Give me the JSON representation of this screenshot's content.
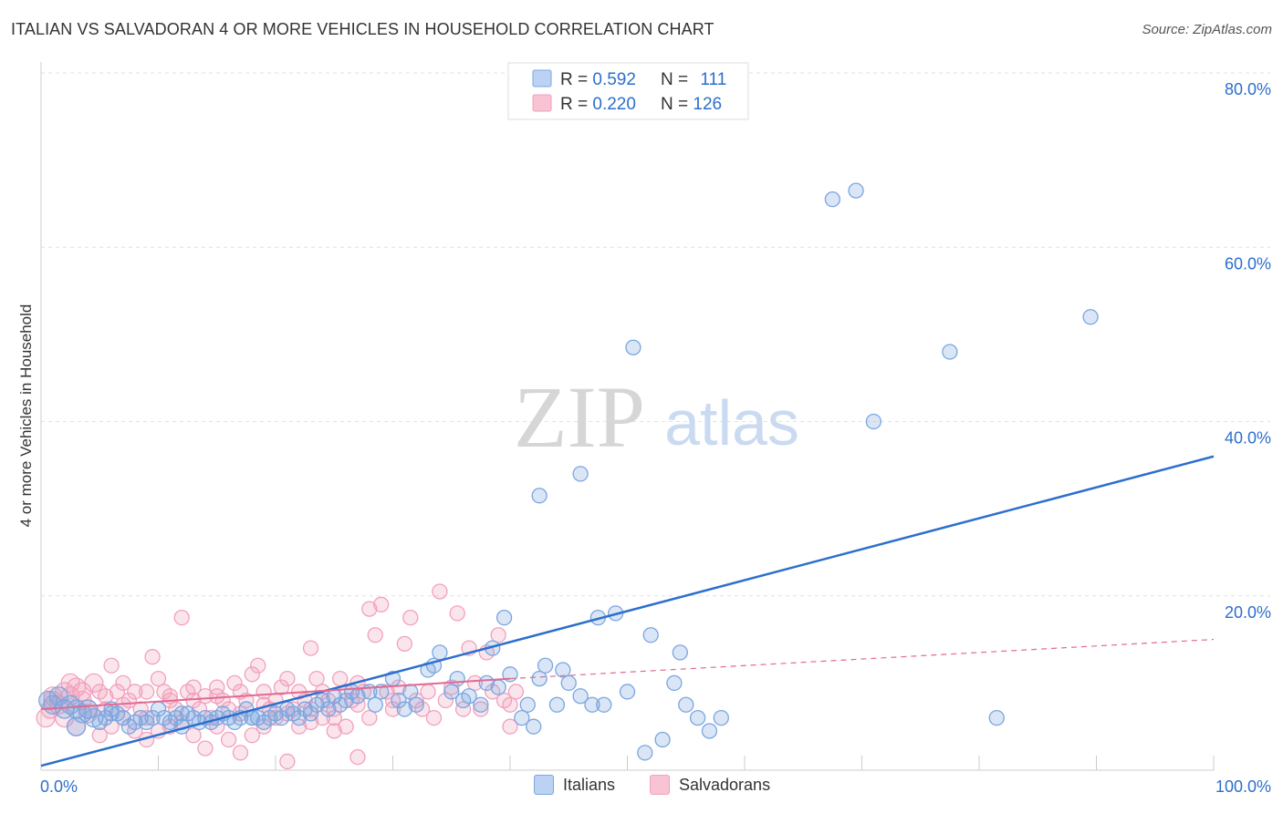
{
  "title": "ITALIAN VS SALVADORAN 4 OR MORE VEHICLES IN HOUSEHOLD CORRELATION CHART",
  "source": "Source: ZipAtlas.com",
  "watermark": {
    "zip": "ZIP",
    "atlas": "atlas"
  },
  "stats": [
    {
      "r_label": "R = ",
      "r_value": "0.592",
      "n_label": "N = ",
      "n_value": "111"
    },
    {
      "r_label": "R = ",
      "r_value": "0.220",
      "n_label": "N = ",
      "n_value": "126"
    }
  ],
  "chart_data": {
    "type": "scatter",
    "title": "ITALIAN VS SALVADORAN 4 OR MORE VEHICLES IN HOUSEHOLD CORRELATION CHART",
    "xlabel": "",
    "ylabel": "4 or more Vehicles in Household",
    "xlim": [
      0,
      100
    ],
    "ylim": [
      0,
      80
    ],
    "x_tick_labels": [
      "0.0%",
      "100.0%"
    ],
    "y_ticks": [
      20,
      40,
      60,
      80
    ],
    "y_tick_labels": [
      "20.0%",
      "40.0%",
      "60.0%",
      "80.0%"
    ],
    "grid": true,
    "legend_position": "bottom-center",
    "series": [
      {
        "name": "Italians",
        "color": "#7aa6e0",
        "line_color": "#2c6fcc",
        "trend": {
          "x": [
            0,
            100
          ],
          "y": [
            0.5,
            36
          ]
        },
        "points": [
          [
            0.6,
            8
          ],
          [
            1,
            7.5
          ],
          [
            1.5,
            8.5
          ],
          [
            2,
            7
          ],
          [
            2.5,
            7.5
          ],
          [
            3,
            7
          ],
          [
            3.5,
            6.5
          ],
          [
            4,
            7
          ],
          [
            4.5,
            6
          ],
          [
            5,
            5.5
          ],
          [
            5.5,
            6
          ],
          [
            6,
            7
          ],
          [
            6.5,
            6.5
          ],
          [
            7,
            6
          ],
          [
            7.5,
            5
          ],
          [
            8,
            5.5
          ],
          [
            8.5,
            6
          ],
          [
            9,
            5.5
          ],
          [
            9.5,
            6
          ],
          [
            10,
            7
          ],
          [
            10.5,
            6
          ],
          [
            11,
            5.5
          ],
          [
            11.5,
            6
          ],
          [
            12,
            5
          ],
          [
            12.5,
            6.5
          ],
          [
            13,
            6
          ],
          [
            13.5,
            5.5
          ],
          [
            14,
            6
          ],
          [
            14.5,
            5.5
          ],
          [
            15,
            6
          ],
          [
            15.5,
            6.5
          ],
          [
            16,
            6
          ],
          [
            16.5,
            5.5
          ],
          [
            17,
            6
          ],
          [
            17.5,
            7
          ],
          [
            18,
            6
          ],
          [
            18.5,
            6
          ],
          [
            19,
            5.5
          ],
          [
            19.5,
            6
          ],
          [
            20,
            6.5
          ],
          [
            20.5,
            6
          ],
          [
            21,
            7
          ],
          [
            21.5,
            6.5
          ],
          [
            22,
            6
          ],
          [
            22.5,
            7
          ],
          [
            23,
            6.5
          ],
          [
            23.5,
            7.5
          ],
          [
            24,
            8
          ],
          [
            24.5,
            7
          ],
          [
            25,
            8.5
          ],
          [
            25.5,
            7.5
          ],
          [
            26,
            8
          ],
          [
            26.5,
            9
          ],
          [
            27,
            8.5
          ],
          [
            28,
            9
          ],
          [
            28.5,
            7.5
          ],
          [
            29,
            9
          ],
          [
            30,
            10.5
          ],
          [
            30.5,
            8
          ],
          [
            31,
            7
          ],
          [
            31.5,
            9
          ],
          [
            32,
            7.5
          ],
          [
            33,
            11.5
          ],
          [
            33.5,
            12
          ],
          [
            34,
            13.5
          ],
          [
            35,
            9
          ],
          [
            35.5,
            10.5
          ],
          [
            36,
            8
          ],
          [
            36.5,
            8.5
          ],
          [
            37.5,
            7.5
          ],
          [
            38,
            10
          ],
          [
            38.5,
            14
          ],
          [
            39,
            9.5
          ],
          [
            39.5,
            17.5
          ],
          [
            40,
            11
          ],
          [
            41,
            6
          ],
          [
            41.5,
            7.5
          ],
          [
            42,
            5
          ],
          [
            42.5,
            10.5
          ],
          [
            43,
            12
          ],
          [
            44,
            7.5
          ],
          [
            44.5,
            11.5
          ],
          [
            45,
            10
          ],
          [
            46,
            8.5
          ],
          [
            47,
            7.5
          ],
          [
            47.5,
            17.5
          ],
          [
            48,
            7.5
          ],
          [
            49,
            18
          ],
          [
            50,
            9
          ],
          [
            51.5,
            2
          ],
          [
            52,
            15.5
          ],
          [
            53,
            3.5
          ],
          [
            54,
            10
          ],
          [
            54.5,
            13.5
          ],
          [
            55,
            7.5
          ],
          [
            56,
            6
          ],
          [
            57,
            4.5
          ],
          [
            58,
            6
          ],
          [
            42.5,
            31.5
          ],
          [
            46,
            34
          ],
          [
            50.5,
            48.5
          ],
          [
            67.5,
            65.5
          ],
          [
            69.5,
            66.5
          ],
          [
            71,
            40
          ],
          [
            77.5,
            48
          ],
          [
            89.5,
            52
          ],
          [
            81.5,
            6
          ],
          [
            3,
            5
          ],
          [
            6,
            6.5
          ],
          [
            12,
            6.5
          ],
          [
            18,
            6
          ]
        ]
      },
      {
        "name": "Salvadorans",
        "color": "#f2a0bc",
        "line_color": "#e06a92",
        "trend": {
          "x": [
            0,
            40
          ],
          "y": [
            7,
            10.5
          ]
        },
        "trend_dash": {
          "x": [
            40,
            100
          ],
          "y": [
            10.5,
            15
          ]
        },
        "points": [
          [
            0.4,
            6
          ],
          [
            0.8,
            7
          ],
          [
            1,
            8
          ],
          [
            1.5,
            7.5
          ],
          [
            2,
            9
          ],
          [
            2.5,
            8.5
          ],
          [
            3,
            9.5
          ],
          [
            3.5,
            8
          ],
          [
            4,
            7
          ],
          [
            4.5,
            10
          ],
          [
            5,
            9
          ],
          [
            5.5,
            8.5
          ],
          [
            6,
            12
          ],
          [
            6.5,
            9
          ],
          [
            7,
            10
          ],
          [
            7.5,
            8
          ],
          [
            8,
            9
          ],
          [
            8.5,
            7
          ],
          [
            9,
            6
          ],
          [
            9.5,
            13
          ],
          [
            10,
            10.5
          ],
          [
            10.5,
            9
          ],
          [
            11,
            8
          ],
          [
            11.5,
            7
          ],
          [
            12,
            17.5
          ],
          [
            12.5,
            9
          ],
          [
            13,
            8
          ],
          [
            13.5,
            7
          ],
          [
            14,
            8.5
          ],
          [
            14.5,
            6
          ],
          [
            15,
            9.5
          ],
          [
            15.5,
            8
          ],
          [
            16,
            7
          ],
          [
            16.5,
            10
          ],
          [
            17,
            9
          ],
          [
            17.5,
            8
          ],
          [
            18,
            11
          ],
          [
            18.5,
            12
          ],
          [
            19,
            9
          ],
          [
            19.5,
            7
          ],
          [
            20,
            8
          ],
          [
            20.5,
            9.5
          ],
          [
            21,
            10.5
          ],
          [
            21.5,
            7
          ],
          [
            22,
            9
          ],
          [
            22.5,
            8
          ],
          [
            23,
            14
          ],
          [
            23.5,
            10.5
          ],
          [
            24,
            9
          ],
          [
            24.5,
            8
          ],
          [
            25,
            7
          ],
          [
            25.5,
            10.5
          ],
          [
            26,
            9
          ],
          [
            26.5,
            8
          ],
          [
            27,
            10
          ],
          [
            27.5,
            9
          ],
          [
            28,
            18.5
          ],
          [
            28.5,
            15.5
          ],
          [
            29,
            19
          ],
          [
            29.5,
            9
          ],
          [
            30,
            8
          ],
          [
            30.5,
            9.5
          ],
          [
            31,
            14.5
          ],
          [
            31.5,
            17.5
          ],
          [
            32,
            8
          ],
          [
            32.5,
            7
          ],
          [
            33,
            9
          ],
          [
            33.5,
            6
          ],
          [
            34,
            20.5
          ],
          [
            34.5,
            8
          ],
          [
            35,
            9.5
          ],
          [
            35.5,
            18
          ],
          [
            36,
            7
          ],
          [
            36.5,
            14
          ],
          [
            37,
            10
          ],
          [
            37.5,
            7
          ],
          [
            38,
            13.5
          ],
          [
            38.5,
            9
          ],
          [
            39,
            15.5
          ],
          [
            39.5,
            8
          ],
          [
            40,
            7.5
          ],
          [
            40.5,
            9
          ],
          [
            2,
            6
          ],
          [
            3,
            5
          ],
          [
            4,
            6.5
          ],
          [
            5,
            4
          ],
          [
            6,
            5
          ],
          [
            7,
            6
          ],
          [
            8,
            4.5
          ],
          [
            9,
            3.5
          ],
          [
            10,
            4.5
          ],
          [
            11,
            5
          ],
          [
            12,
            5.5
          ],
          [
            13,
            4
          ],
          [
            14,
            2.5
          ],
          [
            15,
            5
          ],
          [
            16,
            3.5
          ],
          [
            17,
            2
          ],
          [
            18,
            4
          ],
          [
            19,
            5
          ],
          [
            20,
            6
          ],
          [
            21,
            1
          ],
          [
            22,
            5
          ],
          [
            23,
            5.5
          ],
          [
            24,
            6
          ],
          [
            25,
            4.5
          ],
          [
            26,
            5
          ],
          [
            27,
            1.5
          ],
          [
            28,
            6
          ],
          [
            30,
            7
          ],
          [
            40,
            5
          ],
          [
            1,
            8.5
          ],
          [
            2.5,
            10
          ],
          [
            3.5,
            9
          ],
          [
            5.5,
            7
          ],
          [
            7,
            7.5
          ],
          [
            9,
            9
          ],
          [
            11,
            8.5
          ],
          [
            13,
            9.5
          ],
          [
            15,
            8.5
          ],
          [
            17,
            6.5
          ],
          [
            19,
            7.5
          ],
          [
            21,
            6.5
          ],
          [
            23,
            7
          ],
          [
            25,
            6
          ],
          [
            27,
            7.5
          ]
        ]
      }
    ]
  }
}
